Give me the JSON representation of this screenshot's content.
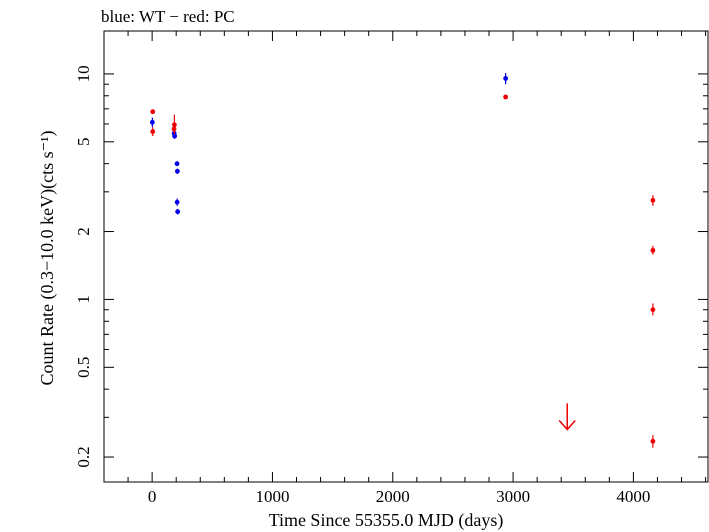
{
  "chart_data": {
    "type": "scatter",
    "title": "blue: WT − red: PC",
    "xlabel": "Time Since 55355.0 MJD (days)",
    "ylabel": "Count Rate (0.3−10.0 keV)(cts s⁻¹)",
    "xlim": [
      -400,
      4620
    ],
    "ylim": [
      0.155,
      15.5
    ],
    "yscale": "log",
    "x_ticks": [
      {
        "value": 0,
        "label": "0"
      },
      {
        "value": 1000,
        "label": "1000"
      },
      {
        "value": 2000,
        "label": "2000"
      },
      {
        "value": 3000,
        "label": "3000"
      },
      {
        "value": 4000,
        "label": "4000"
      }
    ],
    "y_ticks": [
      {
        "value": 0.2,
        "label": "0.2"
      },
      {
        "value": 0.5,
        "label": "0.5"
      },
      {
        "value": 1,
        "label": "1"
      },
      {
        "value": 2,
        "label": "2"
      },
      {
        "value": 5,
        "label": "5"
      },
      {
        "value": 10,
        "label": "10"
      }
    ],
    "series": [
      {
        "name": "WT",
        "color": "#0000ee",
        "points": [
          {
            "x": 2,
            "y": 6.1,
            "ylo": 5.8,
            "yhi": 6.4
          },
          {
            "x": 183,
            "y": 5.45,
            "ylo": 5.3,
            "yhi": 5.6
          },
          {
            "x": 187,
            "y": 5.3,
            "ylo": 5.15,
            "yhi": 5.45
          },
          {
            "x": 207,
            "y": 4.0,
            "ylo": 3.9,
            "yhi": 4.1
          },
          {
            "x": 210,
            "y": 3.7,
            "ylo": 3.6,
            "yhi": 3.8
          },
          {
            "x": 208,
            "y": 2.7,
            "ylo": 2.6,
            "yhi": 2.8
          },
          {
            "x": 212,
            "y": 2.45,
            "ylo": 2.38,
            "yhi": 2.52
          },
          {
            "x": 2938,
            "y": 9.55,
            "ylo": 9.0,
            "yhi": 10.1
          }
        ]
      },
      {
        "name": "PC",
        "color": "#ee0000",
        "points": [
          {
            "x": 5,
            "y": 6.8,
            "ylo": 6.65,
            "yhi": 6.95
          },
          {
            "x": 5,
            "y": 5.55,
            "ylo": 5.3,
            "yhi": 5.8
          },
          {
            "x": 185,
            "y": 5.95,
            "ylo": 5.4,
            "yhi": 6.6
          },
          {
            "x": 182,
            "y": 5.7,
            "ylo": 5.5,
            "yhi": 5.9
          },
          {
            "x": 2938,
            "y": 7.9,
            "ylo": 7.75,
            "yhi": 8.05
          },
          {
            "x": 4162,
            "y": 2.75,
            "ylo": 2.6,
            "yhi": 2.9
          },
          {
            "x": 4162,
            "y": 1.65,
            "ylo": 1.58,
            "yhi": 1.73
          },
          {
            "x": 4162,
            "y": 0.9,
            "ylo": 0.85,
            "yhi": 0.96
          },
          {
            "x": 4162,
            "y": 0.235,
            "ylo": 0.22,
            "yhi": 0.25
          }
        ],
        "upper_limits": [
          {
            "x": 3450,
            "y": 0.265
          }
        ]
      }
    ]
  }
}
